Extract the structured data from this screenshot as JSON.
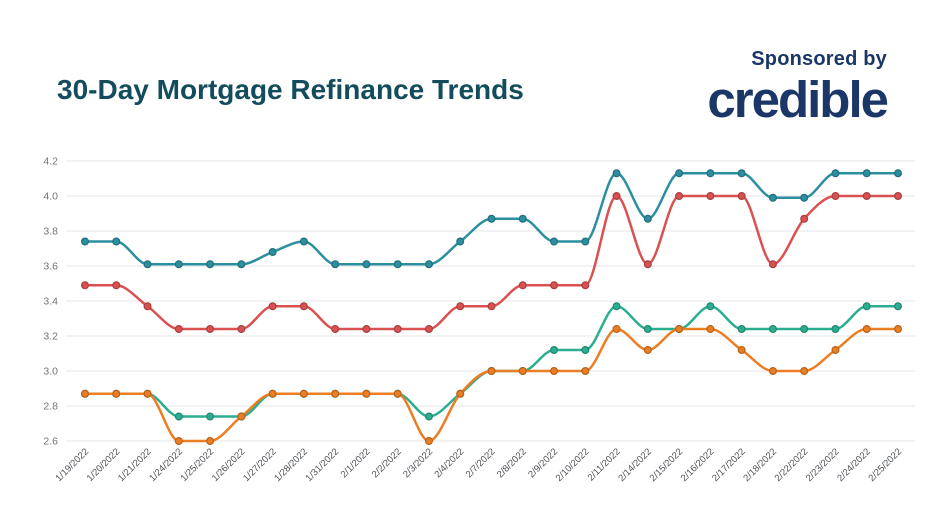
{
  "header": {
    "title": "30-Day Mortgage Refinance Trends",
    "sponsored_label": "Sponsored by",
    "brand_logo_text": "credible"
  },
  "colors": {
    "title_text": "#134D5D",
    "brand_navy": "#1B3767",
    "gridline": "#EBEBEE",
    "y_tick_text": "#70747A",
    "x_tick_text": "#4E5257",
    "background": "#FFFFFF"
  },
  "chart_data": {
    "type": "line",
    "title": "30-Day Mortgage Refinance Trends",
    "xlabel": "",
    "ylabel": "",
    "grid": true,
    "legend_position": "none",
    "ylim": [
      2.5,
      4.3
    ],
    "yticks": [
      2.6,
      2.8,
      3.0,
      3.2,
      3.4,
      3.6,
      3.8,
      4.0,
      4.2
    ],
    "x": [
      "1/19/2022",
      "1/20/2022",
      "1/21/2022",
      "1/24/2022",
      "1/25/2022",
      "1/26/2022",
      "1/27/2022",
      "1/28/2022",
      "1/31/2022",
      "2/1/2022",
      "2/2/2022",
      "2/3/2022",
      "2/4/2022",
      "2/7/2022",
      "2/8/2022",
      "2/9/2022",
      "2/10/2022",
      "2/11/2022",
      "2/14/2022",
      "2/15/2022",
      "2/16/2022",
      "2/17/2022",
      "2/18/2022",
      "2/22/2022",
      "2/23/2022",
      "2/24/2022",
      "2/25/2022"
    ],
    "series": [
      {
        "name": "teal-series",
        "color": "#2C8FA0",
        "values": [
          3.74,
          3.74,
          3.61,
          3.61,
          3.61,
          3.61,
          3.68,
          3.74,
          3.61,
          3.61,
          3.61,
          3.61,
          3.74,
          3.87,
          3.87,
          3.74,
          3.74,
          4.13,
          3.87,
          4.13,
          4.13,
          4.13,
          3.99,
          3.99,
          4.13,
          4.13,
          4.13
        ]
      },
      {
        "name": "red-series",
        "color": "#D95151",
        "values": [
          3.49,
          3.49,
          3.37,
          3.24,
          3.24,
          3.24,
          3.37,
          3.37,
          3.24,
          3.24,
          3.24,
          3.24,
          3.37,
          3.37,
          3.49,
          3.49,
          3.49,
          4.0,
          3.61,
          4.0,
          4.0,
          4.0,
          3.61,
          3.87,
          4.0,
          4.0,
          4.0
        ]
      },
      {
        "name": "green-series",
        "color": "#2BAE8F",
        "values": [
          2.87,
          2.87,
          2.87,
          2.74,
          2.74,
          2.74,
          2.87,
          2.87,
          2.87,
          2.87,
          2.87,
          2.74,
          2.87,
          3.0,
          3.0,
          3.12,
          3.12,
          3.37,
          3.24,
          3.24,
          3.37,
          3.24,
          3.24,
          3.24,
          3.24,
          3.37,
          3.37
        ]
      },
      {
        "name": "orange-series",
        "color": "#EB7E23",
        "values": [
          2.87,
          2.87,
          2.87,
          2.6,
          2.6,
          2.74,
          2.87,
          2.87,
          2.87,
          2.87,
          2.87,
          2.6,
          2.87,
          3.0,
          3.0,
          3.0,
          3.0,
          3.24,
          3.12,
          3.24,
          3.24,
          3.12,
          3.0,
          3.0,
          3.12,
          3.24,
          3.24
        ]
      }
    ]
  }
}
